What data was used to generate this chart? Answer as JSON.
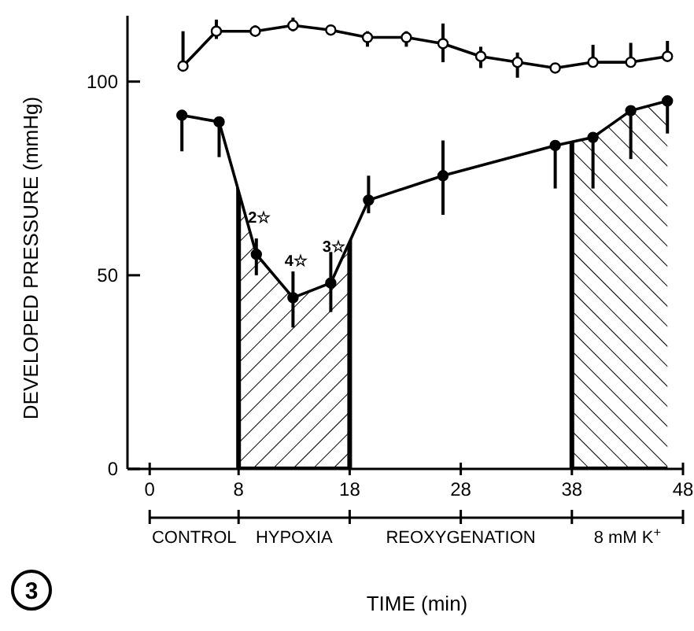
{
  "chart_data": {
    "type": "line",
    "xlabel": "TIME (min)",
    "ylabel": "DEVELOPED PRESSURE (mmHg)",
    "xlim": [
      -2,
      48
    ],
    "xticks": [
      0,
      8,
      18,
      28,
      38,
      48
    ],
    "ylim": [
      0,
      117
    ],
    "yticks": [
      0,
      50,
      100
    ],
    "marker": "circle",
    "line_style": "solid",
    "series": [
      {
        "color": "#000000",
        "x": [
          3,
          6,
          9.5,
          12.9,
          16.3,
          19.6,
          23.1,
          26.4,
          29.8,
          33.1,
          36.5,
          39.9,
          43.3,
          46.6
        ],
        "values": [
          104,
          113,
          113,
          114.5,
          113.3,
          111.4,
          111.4,
          109.8,
          106.5,
          105,
          103.5,
          105,
          105,
          106.5
        ],
        "errors": [
          [
            104,
            113
          ],
          [
            111,
            116
          ],
          [
            112,
            114.5
          ],
          [
            113,
            116.5
          ],
          null,
          [
            109,
            113
          ],
          [
            109,
            113
          ],
          [
            105,
            115
          ],
          [
            103.5,
            109
          ],
          [
            101,
            107.5
          ],
          null,
          [
            104,
            109.5
          ],
          [
            104,
            110
          ],
          [
            106.5,
            110.5
          ]
        ]
      },
      {
        "color": "#000000",
        "x": [
          2.9,
          6.25,
          9.6,
          12.9,
          16.3,
          19.7,
          26.4,
          36.5,
          39.9,
          43.3,
          46.6
        ],
        "values": [
          91.3,
          89.6,
          55.4,
          44.2,
          48,
          69.4,
          75.7,
          83.5,
          85.6,
          92.5,
          95
        ],
        "errors": [
          [
            82,
            91.3
          ],
          [
            80.5,
            89.6
          ],
          [
            50,
            59.5
          ],
          [
            36.5,
            51
          ],
          [
            40.5,
            56
          ],
          [
            66,
            75.7
          ],
          [
            65.6,
            84.8
          ],
          [
            72.4,
            84.5
          ],
          [
            72.4,
            86.6
          ],
          [
            80,
            93.4
          ],
          [
            86.6,
            95.4
          ]
        ]
      }
    ],
    "bands": [
      {
        "axis": "x",
        "from": 8,
        "to": 18
      },
      {
        "axis": "x",
        "from": 38,
        "to": 48
      }
    ],
    "annotations": [
      "CONTROL",
      "HYPOXIA",
      "REOXYGENATION",
      "8 mM K$^{+}$",
      {
        "text": "2☆",
        "x": 9.6,
        "y": 55.4
      },
      {
        "text": "4☆",
        "x": 12.9,
        "y": 44.2
      },
      {
        "text": "3☆",
        "x": 16.3,
        "y": 48
      },
      "3"
    ]
  }
}
